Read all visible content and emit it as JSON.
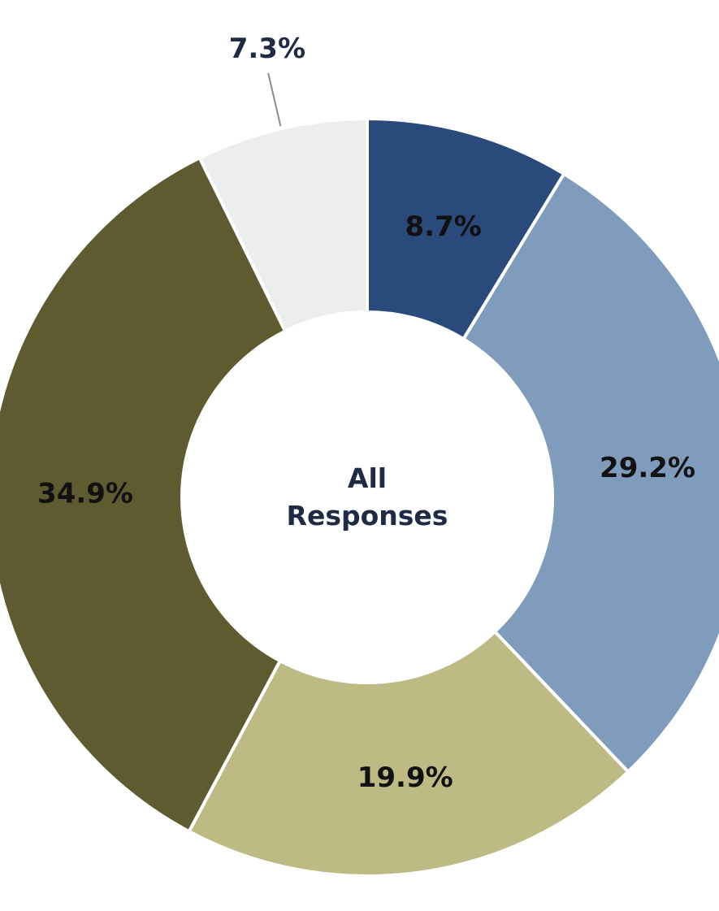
{
  "chart_data": {
    "type": "pie",
    "donut": true,
    "center_label": [
      "All",
      "Responses"
    ],
    "start": "top",
    "direction": "clockwise",
    "slices": [
      {
        "value": 8.7,
        "label": "8.7%",
        "color": "#2a4a7c",
        "label_position": "inside"
      },
      {
        "value": 29.2,
        "label": "29.2%",
        "color": "#7f9cbd",
        "label_position": "inside"
      },
      {
        "value": 19.9,
        "label": "19.9%",
        "color": "#bdbb83",
        "label_position": "inside"
      },
      {
        "value": 34.9,
        "label": "34.9%",
        "color": "#5d5b2f",
        "label_position": "inside"
      },
      {
        "value": 7.3,
        "label": "7.3%",
        "color": "#eceeed",
        "label_position": "outside"
      }
    ],
    "separator_color": "#ffffff",
    "legend": "none"
  }
}
